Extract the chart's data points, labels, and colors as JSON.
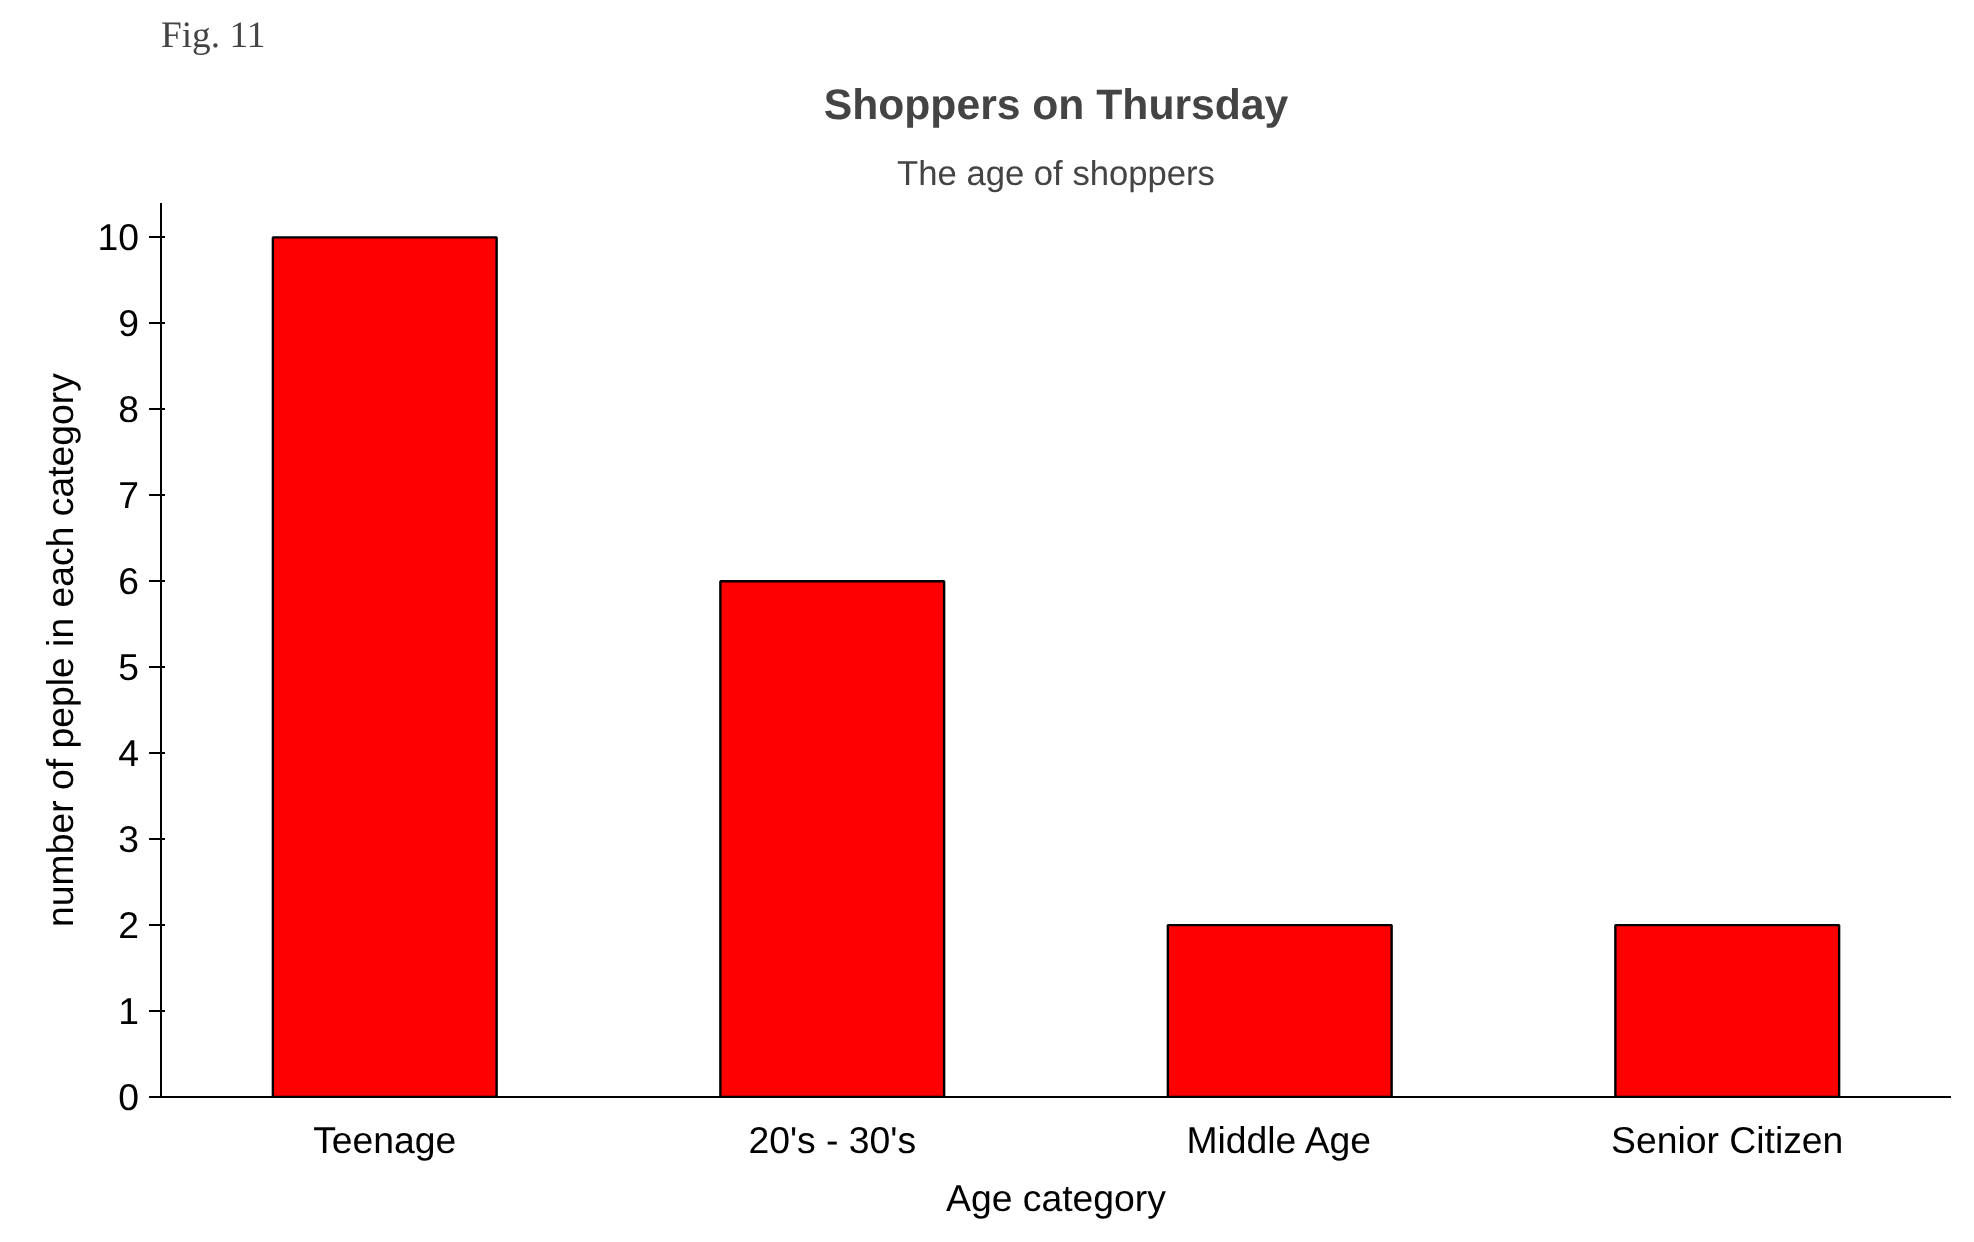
{
  "chart_data": {
    "type": "bar",
    "title": "Shoppers on Thursday",
    "subtitle": "The age of shoppers",
    "xlabel": "Age category",
    "ylabel": "number of peple in each category",
    "annotations": [
      "Fig. 11"
    ],
    "categories": [
      "Teenage",
      "20's - 30's",
      "Middle Age",
      "Senior Citizen"
    ],
    "values": [
      10,
      6,
      2,
      2
    ],
    "color": "#ff0000",
    "ylim": [
      0,
      10.4
    ],
    "yticks": [
      0,
      1,
      2,
      3,
      4,
      5,
      6,
      7,
      8,
      9,
      10
    ],
    "grid": false
  }
}
